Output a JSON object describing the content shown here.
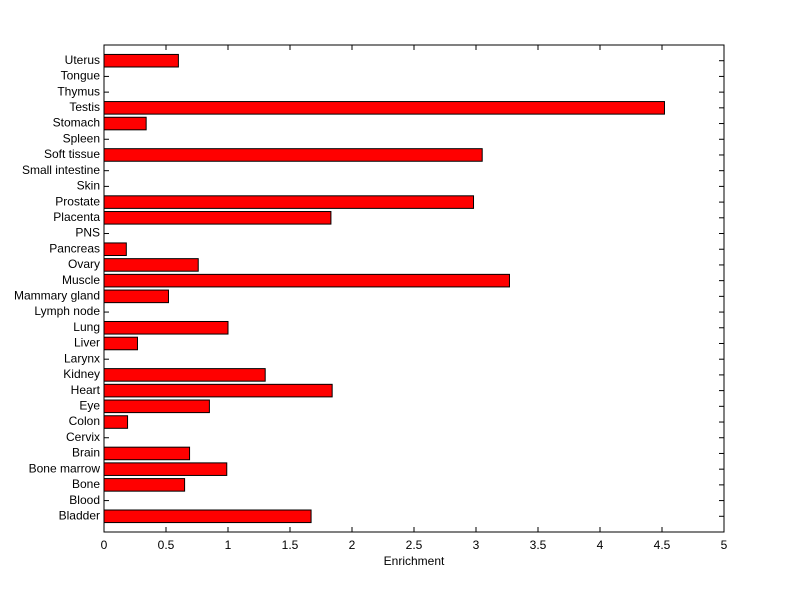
{
  "chart_data": {
    "type": "barh",
    "xlabel": "Enrichment",
    "categories": [
      "Bladder",
      "Blood",
      "Bone",
      "Bone marrow",
      "Brain",
      "Cervix",
      "Colon",
      "Eye",
      "Heart",
      "Kidney",
      "Larynx",
      "Liver",
      "Lung",
      "Lymph node",
      "Mammary gland",
      "Muscle",
      "Ovary",
      "Pancreas",
      "PNS",
      "Placenta",
      "Prostate",
      "Skin",
      "Small intestine",
      "Soft tissue",
      "Spleen",
      "Stomach",
      "Testis",
      "Thymus",
      "Tongue",
      "Uterus"
    ],
    "values": [
      1.67,
      0,
      0.65,
      0.99,
      0.69,
      0,
      0.19,
      0.85,
      1.84,
      1.3,
      0,
      0.27,
      1.0,
      0,
      0.52,
      3.27,
      0.76,
      0.18,
      0,
      1.83,
      2.98,
      0,
      0,
      3.05,
      0,
      0.34,
      4.52,
      0,
      0,
      0.6
    ],
    "color": "#ff0000",
    "xlim": [
      0,
      5
    ],
    "xticks": [
      0,
      0.5,
      1,
      1.5,
      2,
      2.5,
      3,
      3.5,
      4,
      4.5,
      5
    ]
  }
}
